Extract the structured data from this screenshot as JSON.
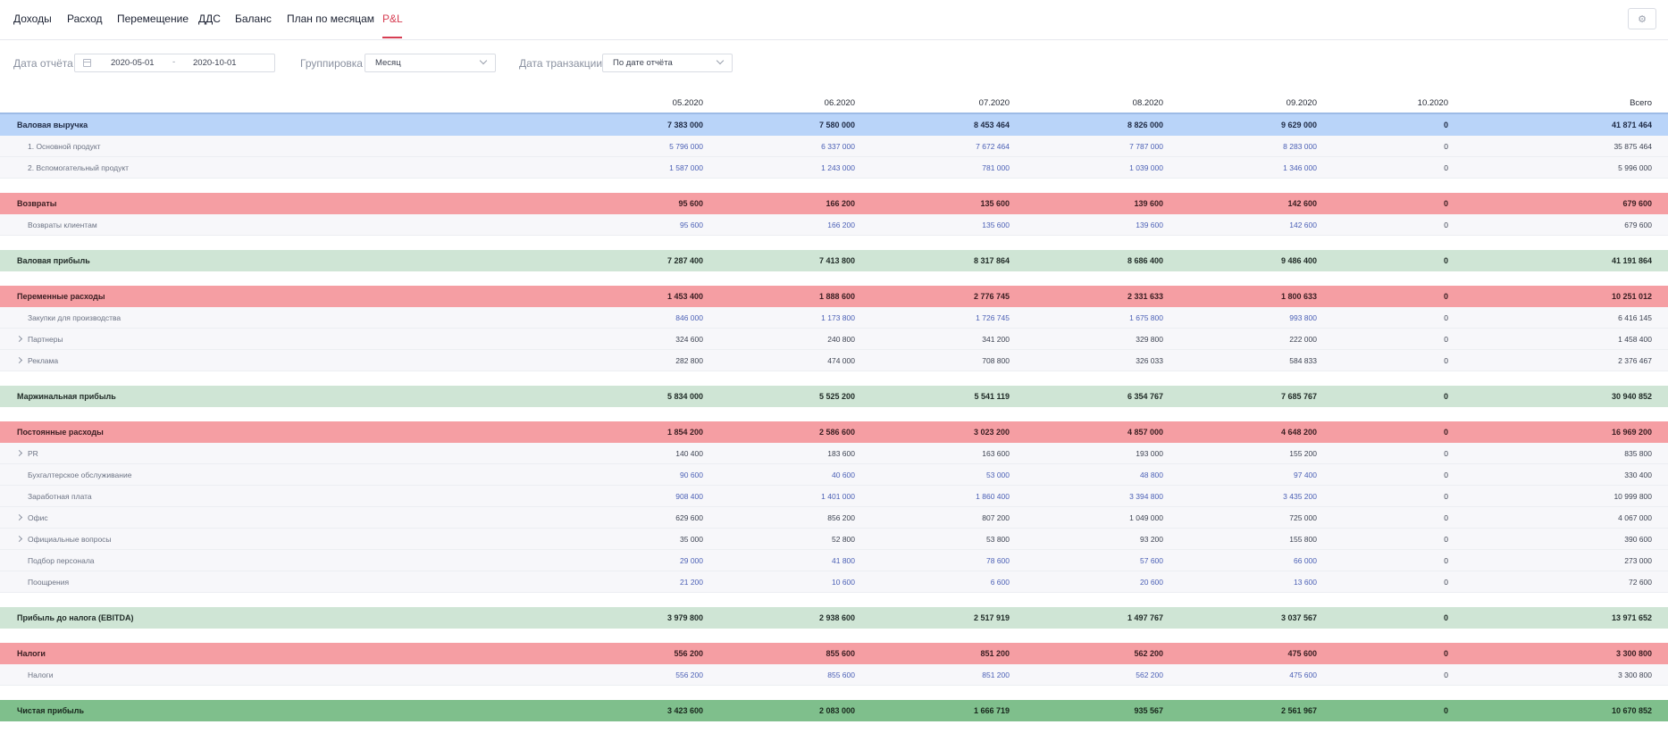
{
  "nav": {
    "tabs": [
      {
        "label": "Доходы"
      },
      {
        "label": "Расход"
      },
      {
        "label": "Перемещение"
      },
      {
        "label": "ДДС"
      },
      {
        "label": "Баланс"
      },
      {
        "label": "План по месяцам"
      },
      {
        "label": "P&L",
        "active": true
      }
    ],
    "settings_icon": "gear-icon"
  },
  "filters": {
    "report_date_label": "Дата отчёта",
    "date_from": "2020-05-01",
    "date_sep": "-",
    "date_to": "2020-10-01",
    "grouping_label": "Группировка",
    "grouping_value": "Месяц",
    "transaction_date_label": "Дата транзакции",
    "transaction_date_value": "По дате отчёта"
  },
  "table": {
    "columns": [
      "05.2020",
      "06.2020",
      "07.2020",
      "08.2020",
      "09.2020",
      "10.2020",
      "Всего"
    ],
    "colors": {
      "revenue": "#b9d4f9",
      "expense": "#f59ea3",
      "profit": "#cfe5d5",
      "net_profit": "#7fbf8c",
      "link": "#4a5fb5",
      "active_tab": "#d63d52"
    },
    "rows": [
      {
        "type": "group",
        "color": "revenue",
        "label": "Валовая выручка",
        "values": [
          "7 383 000",
          "7 580 000",
          "8 453 464",
          "8 826 000",
          "9 629 000",
          "0",
          "41 871 464"
        ]
      },
      {
        "type": "sub",
        "link": true,
        "label": "1. Основной продукт",
        "values": [
          "5 796 000",
          "6 337 000",
          "7 672 464",
          "7 787 000",
          "8 283 000",
          "0",
          "35 875 464"
        ]
      },
      {
        "type": "sub",
        "link": true,
        "label": "2. Вспомогательный продукт",
        "values": [
          "1 587 000",
          "1 243 000",
          "781 000",
          "1 039 000",
          "1 346 000",
          "0",
          "5 996 000"
        ]
      },
      {
        "type": "group",
        "color": "expense",
        "label": "Возвраты",
        "values": [
          "95 600",
          "166 200",
          "135 600",
          "139 600",
          "142 600",
          "0",
          "679 600"
        ]
      },
      {
        "type": "sub",
        "link": true,
        "label": "Возвраты клиентам",
        "values": [
          "95 600",
          "166 200",
          "135 600",
          "139 600",
          "142 600",
          "0",
          "679 600"
        ]
      },
      {
        "type": "group",
        "color": "profit",
        "label": "Валовая прибыль",
        "values": [
          "7 287 400",
          "7 413 800",
          "8 317 864",
          "8 686 400",
          "9 486 400",
          "0",
          "41 191 864"
        ]
      },
      {
        "type": "group",
        "color": "expense",
        "label": "Переменные расходы",
        "values": [
          "1 453 400",
          "1 888 600",
          "2 776 745",
          "2 331 633",
          "1 800 633",
          "0",
          "10 251 012"
        ]
      },
      {
        "type": "sub",
        "link": true,
        "label": "Закупки для производства",
        "values": [
          "846 000",
          "1 173 800",
          "1 726 745",
          "1 675 800",
          "993 800",
          "0",
          "6 416 145"
        ]
      },
      {
        "type": "sub",
        "link": false,
        "expand": true,
        "label": "Партнеры",
        "values": [
          "324 600",
          "240 800",
          "341 200",
          "329 800",
          "222 000",
          "0",
          "1 458 400"
        ]
      },
      {
        "type": "sub",
        "link": false,
        "expand": true,
        "label": "Реклама",
        "values": [
          "282 800",
          "474 000",
          "708 800",
          "326 033",
          "584 833",
          "0",
          "2 376 467"
        ]
      },
      {
        "type": "group",
        "color": "profit",
        "label": "Маржинальная прибыль",
        "values": [
          "5 834 000",
          "5 525 200",
          "5 541 119",
          "6 354 767",
          "7 685 767",
          "0",
          "30 940 852"
        ]
      },
      {
        "type": "group",
        "color": "expense",
        "label": "Постоянные расходы",
        "values": [
          "1 854 200",
          "2 586 600",
          "3 023 200",
          "4 857 000",
          "4 648 200",
          "0",
          "16 969 200"
        ]
      },
      {
        "type": "sub",
        "link": false,
        "expand": true,
        "label": "PR",
        "values": [
          "140 400",
          "183 600",
          "163 600",
          "193 000",
          "155 200",
          "0",
          "835 800"
        ]
      },
      {
        "type": "sub",
        "link": true,
        "label": "Бухгалтерское обслуживание",
        "values": [
          "90 600",
          "40 600",
          "53 000",
          "48 800",
          "97 400",
          "0",
          "330 400"
        ]
      },
      {
        "type": "sub",
        "link": true,
        "label": "Заработная плата",
        "values": [
          "908 400",
          "1 401 000",
          "1 860 400",
          "3 394 800",
          "3 435 200",
          "0",
          "10 999 800"
        ]
      },
      {
        "type": "sub",
        "link": false,
        "expand": true,
        "label": "Офис",
        "values": [
          "629 600",
          "856 200",
          "807 200",
          "1 049 000",
          "725 000",
          "0",
          "4 067 000"
        ]
      },
      {
        "type": "sub",
        "link": false,
        "expand": true,
        "label": "Официальные вопросы",
        "values": [
          "35 000",
          "52 800",
          "53 800",
          "93 200",
          "155 800",
          "0",
          "390 600"
        ]
      },
      {
        "type": "sub",
        "link": true,
        "label": "Подбор персонала",
        "values": [
          "29 000",
          "41 800",
          "78 600",
          "57 600",
          "66 000",
          "0",
          "273 000"
        ]
      },
      {
        "type": "sub",
        "link": true,
        "label": "Поощрения",
        "values": [
          "21 200",
          "10 600",
          "6 600",
          "20 600",
          "13 600",
          "0",
          "72 600"
        ]
      },
      {
        "type": "group",
        "color": "profit",
        "label": "Прибыль до налога (EBITDA)",
        "values": [
          "3 979 800",
          "2 938 600",
          "2 517 919",
          "1 497 767",
          "3 037 567",
          "0",
          "13 971 652"
        ]
      },
      {
        "type": "group",
        "color": "expense",
        "label": "Налоги",
        "values": [
          "556 200",
          "855 600",
          "851 200",
          "562 200",
          "475 600",
          "0",
          "3 300 800"
        ]
      },
      {
        "type": "sub",
        "link": true,
        "label": "Налоги",
        "values": [
          "556 200",
          "855 600",
          "851 200",
          "562 200",
          "475 600",
          "0",
          "3 300 800"
        ]
      },
      {
        "type": "group",
        "color": "net_profit",
        "label": "Чистая прибыль",
        "values": [
          "3 423 600",
          "2 083 000",
          "1 666 719",
          "935 567",
          "2 561 967",
          "0",
          "10 670 852"
        ]
      }
    ]
  }
}
